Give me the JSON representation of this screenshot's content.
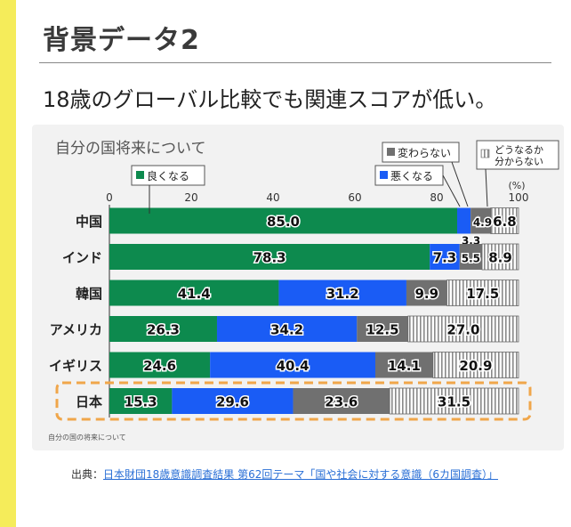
{
  "header": {
    "title": "背景データ2",
    "subtitle": "18歳のグローバル比較でも関連スコアが低い。"
  },
  "source": {
    "prefix": "出典：",
    "link_text": "日本財団18歳意識調査結果 第62回テーマ「国や社会に対する意識（6カ国調査）」"
  },
  "colors": {
    "good": "#0d8a4e",
    "bad": "#1a5cf5",
    "change": "#707070",
    "unknown_bg": "#ffffff",
    "unknown_hatch": "#8a8a8a",
    "highlight": "#f0a64a",
    "accent_bar": "#f5ec5a"
  },
  "chart_data": {
    "type": "bar",
    "orientation": "horizontal",
    "stacked": true,
    "title": "自分の国将来について",
    "footnote": "自分の国の将来について",
    "unit_label": "(%)",
    "xlim": [
      0,
      100
    ],
    "x_ticks": [
      "0",
      "20",
      "40",
      "60",
      "80",
      "100"
    ],
    "categories": [
      "中国",
      "インド",
      "韓国",
      "アメリカ",
      "イギリス",
      "日本"
    ],
    "highlighted_category": "日本",
    "series": [
      {
        "name": "良くなる",
        "color": "#0d8a4e",
        "values": [
          85.0,
          78.3,
          41.4,
          26.3,
          24.6,
          15.3
        ],
        "labels": [
          "85.0",
          "78.3",
          "41.4",
          "26.3",
          "24.6",
          "15.3"
        ]
      },
      {
        "name": "悪くなる",
        "color": "#1a5cf5",
        "values": [
          3.3,
          7.3,
          31.2,
          34.2,
          40.4,
          29.6
        ],
        "labels": [
          "3.3",
          "7.3",
          "31.2",
          "34.2",
          "40.4",
          "29.6"
        ]
      },
      {
        "name": "変わらない",
        "color": "#707070",
        "values": [
          4.9,
          5.5,
          9.9,
          12.5,
          14.1,
          23.6
        ],
        "labels": [
          "4.9",
          "5.5",
          "9.9",
          "12.5",
          "14.1",
          "23.6"
        ]
      },
      {
        "name": "どうなるか分からない",
        "color": "hatch",
        "values": [
          6.8,
          8.9,
          17.5,
          27.0,
          20.9,
          31.5
        ],
        "labels": [
          "6.8",
          "8.9",
          "17.5",
          "27.0",
          "20.9",
          "31.5"
        ]
      }
    ],
    "legend": {
      "change_label": "変わらない",
      "bad_label": "悪くなる",
      "good_label": "良くなる",
      "unknown_label_line1": "どうなるか",
      "unknown_label_line2": "分からない"
    }
  }
}
